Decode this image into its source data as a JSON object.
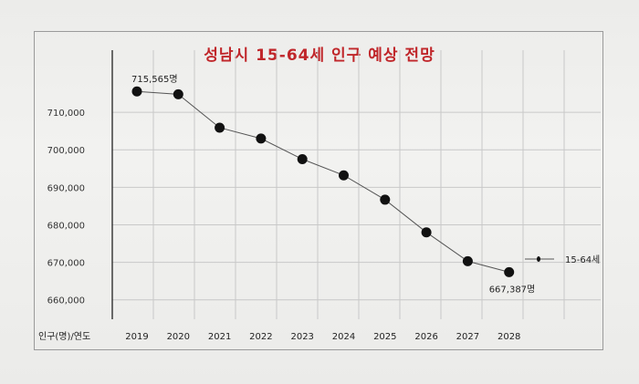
{
  "chart_data": {
    "type": "line",
    "title": "성남시 15-64세 인구 예상 전망",
    "x_axis_label": "인구(명)/연도",
    "categories": [
      "2019",
      "2020",
      "2021",
      "2022",
      "2023",
      "2024",
      "2025",
      "2026",
      "2027",
      "2028"
    ],
    "series": [
      {
        "name": "15-64세",
        "values": [
          715565,
          714800,
          705900,
          703000,
          697500,
          693200,
          686700,
          678000,
          670300,
          667387
        ]
      }
    ],
    "y_ticks": [
      "710,000",
      "700,000",
      "690,000",
      "680,000",
      "670,000",
      "660,000"
    ],
    "ylim": [
      657500,
      720000
    ],
    "data_labels": [
      {
        "index": 0,
        "text": "715,565명"
      },
      {
        "index": 9,
        "text": "667,387명"
      }
    ],
    "legend_position": "right",
    "grid": true,
    "colors": {
      "title": "#c0262a",
      "line": "#555555",
      "marker": "#111111",
      "grid": "#c8c8c8"
    }
  }
}
